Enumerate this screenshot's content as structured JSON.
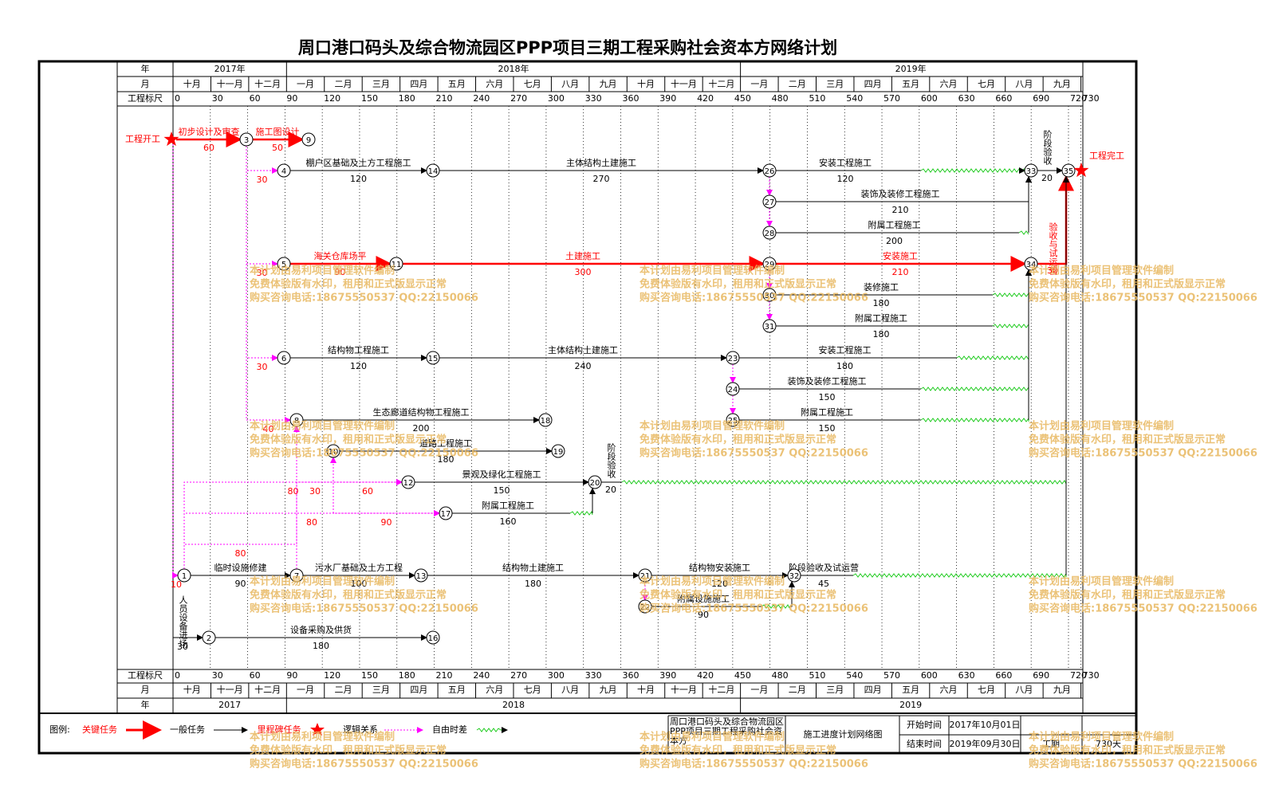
{
  "title": "周口港口码头及综合物流园区PPP项目三期工程采购社会资本方网络计划",
  "header": {
    "year_label": "年",
    "month_label": "月",
    "scale_label": "工程标尺",
    "years_top": [
      "2017年",
      "2018年",
      "2019年"
    ],
    "years_bottom": [
      "2017",
      "2018",
      "2019"
    ],
    "months": [
      "十月",
      "十一月",
      "十二月",
      "一月",
      "二月",
      "三月",
      "四月",
      "五月",
      "六月",
      "七月",
      "八月",
      "九月",
      "十月",
      "十一月",
      "十二月",
      "一月",
      "二月",
      "三月",
      "四月",
      "五月",
      "六月",
      "七月",
      "八月",
      "九月"
    ],
    "scale": [
      0,
      30,
      60,
      90,
      120,
      150,
      180,
      210,
      240,
      270,
      300,
      330,
      360,
      390,
      420,
      450,
      480,
      510,
      540,
      570,
      600,
      630,
      660,
      690,
      720,
      730
    ]
  },
  "nodes": [
    {
      "label": "工程开工",
      "kind": "milestone"
    },
    {
      "label": "1"
    },
    {
      "label": "2"
    },
    {
      "label": "3"
    },
    {
      "label": "4"
    },
    {
      "label": "5"
    },
    {
      "label": "6"
    },
    {
      "label": "7"
    },
    {
      "label": "8"
    },
    {
      "label": "9"
    },
    {
      "label": "10"
    },
    {
      "label": "11"
    },
    {
      "label": "12"
    },
    {
      "label": "13"
    },
    {
      "label": "14"
    },
    {
      "label": "15"
    },
    {
      "label": "16"
    },
    {
      "label": "17"
    },
    {
      "label": "18"
    },
    {
      "label": "19"
    },
    {
      "label": "20"
    },
    {
      "label": "21"
    },
    {
      "label": "22"
    },
    {
      "label": "23"
    },
    {
      "label": "24"
    },
    {
      "label": "25"
    },
    {
      "label": "26"
    },
    {
      "label": "27"
    },
    {
      "label": "28"
    },
    {
      "label": "29"
    },
    {
      "label": "30"
    },
    {
      "label": "31"
    },
    {
      "label": "32"
    },
    {
      "label": "33"
    },
    {
      "label": "34"
    },
    {
      "label": "35"
    },
    {
      "label": "工程完工",
      "kind": "milestone"
    }
  ],
  "tasks": [
    {
      "from": "工程开工",
      "to": "3",
      "name": "初步设计及审查",
      "duration": 60,
      "critical": true
    },
    {
      "from": "3",
      "to": "9",
      "name": "施工图设计",
      "duration": 50,
      "critical": true
    },
    {
      "from": "4",
      "to": "14",
      "name": "棚户区基础及土方工程施工",
      "duration": 120
    },
    {
      "from": "14",
      "to": "26",
      "name": "主体结构土建施工",
      "duration": 270
    },
    {
      "from": "26",
      "to": "33",
      "name": "安装工程施工",
      "duration": 120
    },
    {
      "from": "27",
      "to": "33",
      "name": "装饰及装修工程施工",
      "duration": 210
    },
    {
      "from": "28",
      "to": "33",
      "name": "附属工程施工",
      "duration": 200
    },
    {
      "from": "33",
      "to": "35",
      "name": "阶段验收",
      "duration": 20
    },
    {
      "from": "5",
      "to": "11",
      "name": "海关仓库场平",
      "duration": 90,
      "critical": true
    },
    {
      "from": "11",
      "to": "29",
      "name": "土建施工",
      "duration": 300,
      "critical": true
    },
    {
      "from": "29",
      "to": "34",
      "name": "安装施工",
      "duration": 210,
      "critical": true
    },
    {
      "from": "34",
      "to": "35",
      "name": "验收与试运营",
      "duration": 30,
      "critical": true
    },
    {
      "from": "30",
      "to": "34",
      "name": "装修施工",
      "duration": 180
    },
    {
      "from": "31",
      "to": "34",
      "name": "附属工程施工",
      "duration": 180
    },
    {
      "from": "6",
      "to": "15",
      "name": "结构物工程施工",
      "duration": 120
    },
    {
      "from": "15",
      "to": "23",
      "name": "主体结构土建施工",
      "duration": 240
    },
    {
      "from": "23",
      "to": "34",
      "name": "安装工程施工",
      "duration": 180
    },
    {
      "from": "24",
      "to": "34",
      "name": "装饰及装修工程施工",
      "duration": 150
    },
    {
      "from": "25",
      "to": "34",
      "name": "附属工程施工",
      "duration": 150
    },
    {
      "from": "8",
      "to": "18",
      "name": "生态廊道结构物工程施工",
      "duration": 200
    },
    {
      "from": "10",
      "to": "19",
      "name": "道路工程施工",
      "duration": 180
    },
    {
      "from": "12",
      "to": "20",
      "name": "景观及绿化工程施工",
      "duration": 150
    },
    {
      "from": "17",
      "to": "20",
      "name": "附属工程施工",
      "duration": 160
    },
    {
      "from": "20",
      "to": "35",
      "name": "阶段验收",
      "duration": 20
    },
    {
      "from": "1",
      "to": "7",
      "name": "临时设施修建",
      "duration": 90
    },
    {
      "from": "7",
      "to": "13",
      "name": "污水厂基础及土方工程",
      "duration": 100
    },
    {
      "from": "13",
      "to": "21",
      "name": "结构物土建施工",
      "duration": 180
    },
    {
      "from": "21",
      "to": "32",
      "name": "结构物安装施工",
      "duration": 120
    },
    {
      "from": "22",
      "to": "32",
      "name": "附属设施施工",
      "duration": 90
    },
    {
      "from": "32",
      "to": "35",
      "name": "阶段验收及试运营",
      "duration": 45
    },
    {
      "from": "工程开工",
      "to": "2",
      "name": "人员设备进场",
      "duration": 30
    },
    {
      "from": "2",
      "to": "16",
      "name": "设备采购及供货",
      "duration": 180
    }
  ],
  "logic": [
    {
      "from": "工程开工",
      "to": "1",
      "lag": 10
    },
    {
      "from": "3",
      "to": "4",
      "lag": 30
    },
    {
      "from": "3",
      "to": "5",
      "lag": 30
    },
    {
      "from": "3",
      "to": "6",
      "lag": 30
    },
    {
      "from": "3",
      "to": "8",
      "lag": 40
    },
    {
      "from": "1",
      "to": "12",
      "lag": 80
    },
    {
      "from": "1",
      "to": "17",
      "lag": 80
    },
    {
      "from": "1",
      "to": "8",
      "lag": 80
    },
    {
      "from": "7",
      "to": "10",
      "lag": 30
    },
    {
      "from": "10",
      "to": "12",
      "lag": 60
    },
    {
      "from": "10",
      "to": "17",
      "lag": 90
    },
    {
      "from": "26",
      "to": "27"
    },
    {
      "from": "27",
      "to": "28"
    },
    {
      "from": "29",
      "to": "30"
    },
    {
      "from": "30",
      "to": "31"
    },
    {
      "from": "23",
      "to": "24"
    },
    {
      "from": "24",
      "to": "25"
    },
    {
      "from": "21",
      "to": "22"
    }
  ],
  "legend": {
    "title": "图例:",
    "items": [
      "关键任务",
      "一般任务",
      "里程碑任务",
      "逻辑关系",
      "自由时差"
    ]
  },
  "info": {
    "project": "周口港口码头及综合物流园区PPP项目三期工程采购社会资本方",
    "drawing": "施工进度计划网络图",
    "start_label": "开始时间",
    "start": "2017年10月01日",
    "end_label": "结束时间",
    "end": "2019年09月30日",
    "duration_label": "工期",
    "duration": "730天"
  },
  "watermark": [
    "本计划由易利项目管理软件编制",
    "免费体验版有水印，租用和正式版显示正常",
    "购买咨询电话:18675550537 QQ:22150066"
  ]
}
